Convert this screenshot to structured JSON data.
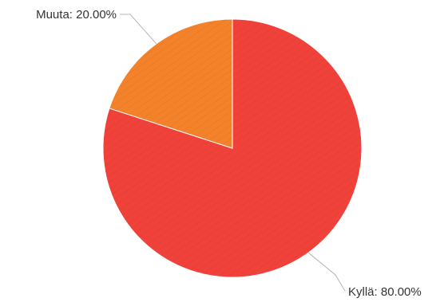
{
  "chart_data": {
    "type": "pie",
    "start_angle_deg": 0,
    "direction": "clockwise",
    "slices": [
      {
        "label": "Kyllä",
        "value": 80.0,
        "display": "Kyllä: 80.00%",
        "color": "#f0423a"
      },
      {
        "label": "Muuta",
        "value": 20.0,
        "display": "Muuta: 20.00%",
        "color": "#f4822a"
      }
    ]
  }
}
